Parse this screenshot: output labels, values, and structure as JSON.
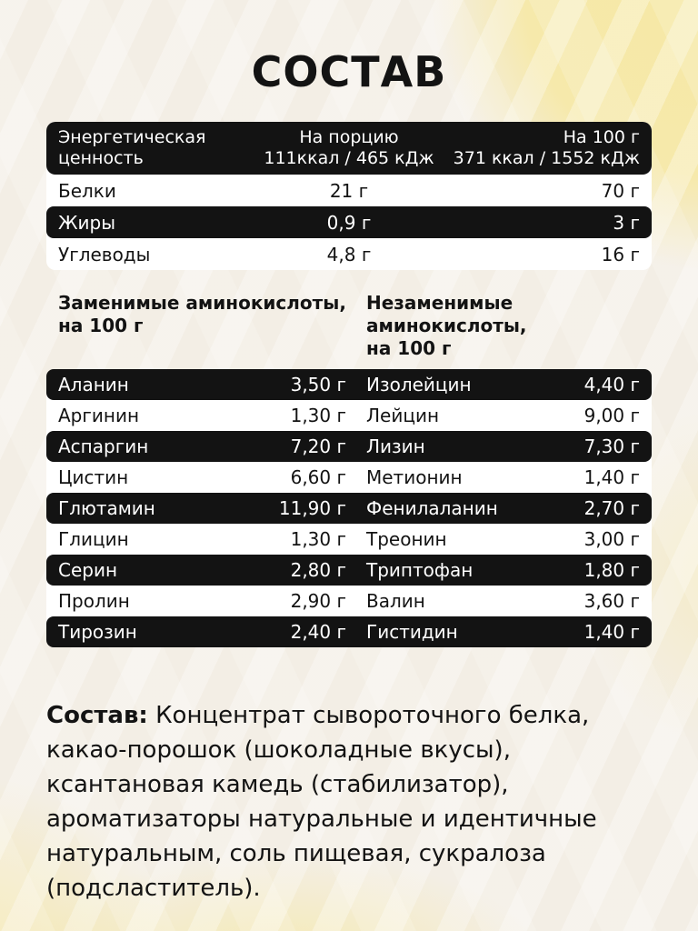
{
  "page": {
    "title": "СОСТАВ"
  },
  "colors": {
    "row_black": "#131313",
    "row_white": "#ffffff",
    "background_cream": "#f3eee5",
    "background_yellow": "#f6e9ab"
  },
  "energy_table": {
    "header": {
      "label_line1": "Энергетическая",
      "label_line2": "ценность",
      "per_serving_title": "На порцию",
      "per_serving_value": "111ккал / 465 кДж",
      "per_100g_title": "На 100 г",
      "per_100g_value": "371 ккал / 1552 кДж"
    },
    "rows": [
      {
        "label": "Белки",
        "per_serving": "21 г",
        "per_100g": "70 г"
      },
      {
        "label": "Жиры",
        "per_serving": "0,9 г",
        "per_100g": "3 г"
      },
      {
        "label": "Углеводы",
        "per_serving": "4,8 г",
        "per_100g": "16 г"
      }
    ]
  },
  "amino_acids": {
    "left_header_line1": "Заменимые аминокислоты,",
    "left_header_line2": "на 100 г",
    "right_header_line1": "Незаменимые аминокислоты,",
    "right_header_line2": "на 100 г",
    "rows": [
      {
        "left_name": "Аланин",
        "left_value": "3,50 г",
        "right_name": "Изолейцин",
        "right_value": "4,40 г"
      },
      {
        "left_name": "Аргинин",
        "left_value": "1,30 г",
        "right_name": "Лейцин",
        "right_value": "9,00 г"
      },
      {
        "left_name": "Аспаргин",
        "left_value": "7,20 г",
        "right_name": "Лизин",
        "right_value": "7,30 г"
      },
      {
        "left_name": "Цистин",
        "left_value": "6,60 г",
        "right_name": "Метионин",
        "right_value": "1,40 г"
      },
      {
        "left_name": "Глютамин",
        "left_value": "11,90 г",
        "right_name": "Фенилаланин",
        "right_value": "2,70 г"
      },
      {
        "left_name": "Глицин",
        "left_value": "1,30 г",
        "right_name": "Треонин",
        "right_value": "3,00 г"
      },
      {
        "left_name": "Серин",
        "left_value": "2,80 г",
        "right_name": "Триптофан",
        "right_value": "1,80 г"
      },
      {
        "left_name": "Пролин",
        "left_value": "2,90 г",
        "right_name": "Валин",
        "right_value": "3,60 г"
      },
      {
        "left_name": "Тирозин",
        "left_value": "2,40 г",
        "right_name": "Гистидин",
        "right_value": "1,40 г"
      }
    ]
  },
  "composition": {
    "label": "Состав:",
    "lines": [
      "Концентрат сывороточного белка,",
      "какао-порошок (шоколадные вкусы),",
      "ксантановая камедь (стабилизатор),",
      "ароматизаторы натуральные и идентичные",
      "натуральным, соль пищевая, сукралоза",
      "(подсластитель)."
    ]
  }
}
